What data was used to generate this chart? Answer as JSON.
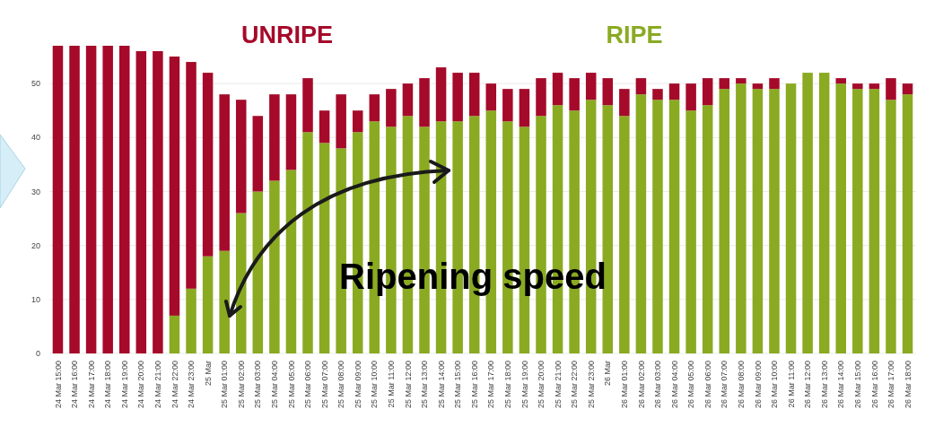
{
  "chart_data": {
    "type": "bar",
    "stacked": true,
    "categories": [
      "24 Mar 15:00",
      "24 Mar 16:00",
      "24 Mar 17:00",
      "24 Mar 18:00",
      "24 Mar 19:00",
      "24 Mar 20:00",
      "24 Mar 21:00",
      "24 Mar 22:00",
      "24 Mar 23:00",
      "25 Mar",
      "25 Mar 01:00",
      "25 Mar 02:00",
      "25 Mar 03:00",
      "25 Mar 04:00",
      "25 Mar 05:00",
      "25 Mar 06:00",
      "25 Mar 07:00",
      "25 Mar 08:00",
      "25 Mar 09:00",
      "25 Mar 10:00",
      "25 Mar 11:00",
      "25 Mar 12:00",
      "25 Mar 13:00",
      "25 Mar 14:00",
      "25 Mar 15:00",
      "25 Mar 16:00",
      "25 Mar 17:00",
      "25 Mar 18:00",
      "25 Mar 19:00",
      "25 Mar 20:00",
      "25 Mar 21:00",
      "25 Mar 22:00",
      "25 Mar 23:00",
      "26 Mar",
      "26 Mar 01:00",
      "26 Mar 02:00",
      "26 Mar 03:00",
      "26 Mar 04:00",
      "26 Mar 05:00",
      "26 Mar 06:00",
      "26 Mar 07:00",
      "26 Mar 08:00",
      "26 Mar 09:00",
      "26 Mar 10:00",
      "26 Mar 11:00",
      "26 Mar 12:00",
      "26 Mar 13:00",
      "26 Mar 14:00",
      "26 Mar 15:00",
      "26 Mar 16:00",
      "26 Mar 17:00",
      "26 Mar 18:00"
    ],
    "series": [
      {
        "name": "RIPE",
        "color": "#8aaa22",
        "values": [
          0,
          0,
          0,
          0,
          0,
          0,
          0,
          7,
          12,
          18,
          19,
          26,
          30,
          32,
          34,
          41,
          39,
          38,
          41,
          43,
          42,
          44,
          42,
          43,
          43,
          44,
          45,
          43,
          42,
          44,
          46,
          45,
          47,
          46,
          44,
          48,
          47,
          47,
          45,
          46,
          49,
          50,
          49,
          49,
          50,
          52,
          52,
          50,
          49,
          49,
          47,
          48
        ]
      },
      {
        "name": "UNRIPE",
        "color": "#a50a2a",
        "values": [
          57,
          57,
          57,
          57,
          57,
          56,
          56,
          48,
          42,
          34,
          29,
          21,
          14,
          16,
          14,
          10,
          6,
          10,
          4,
          5,
          7,
          6,
          9,
          10,
          9,
          8,
          5,
          6,
          7,
          7,
          6,
          6,
          5,
          5,
          5,
          3,
          2,
          3,
          5,
          5,
          2,
          1,
          1,
          2,
          0,
          0,
          0,
          1,
          1,
          1,
          4,
          2
        ]
      }
    ],
    "ylim": [
      0,
      58
    ],
    "yticks": [
      0,
      10,
      20,
      30,
      40,
      50
    ],
    "grid": "y",
    "annotations": [
      "Ripening speed"
    ]
  }
}
